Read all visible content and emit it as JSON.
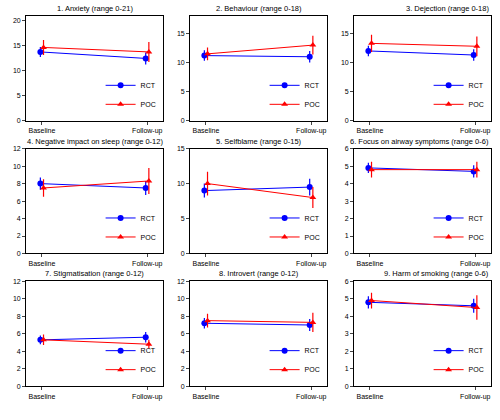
{
  "chart_data": [
    {
      "type": "line",
      "title": "1. Anxiety (range 0-21)",
      "categories": [
        "Baseline",
        "Follow-up"
      ],
      "ylim": [
        0,
        21
      ],
      "yticks": [
        0,
        5,
        10,
        15,
        20
      ],
      "legend": "lower right",
      "series": [
        {
          "name": "RCT",
          "color": "#0000ff",
          "marker": "circle",
          "values": [
            13.8,
            12.5
          ],
          "error": [
            1.0,
            1.2
          ]
        },
        {
          "name": "POC",
          "color": "#ff0000",
          "marker": "triangle",
          "values": [
            14.7,
            13.8
          ],
          "error": [
            1.5,
            2.0
          ]
        }
      ]
    },
    {
      "type": "line",
      "title": "2. Behaviour (range 0-18)",
      "categories": [
        "Baseline",
        "Follow-up"
      ],
      "ylim": [
        0,
        18
      ],
      "yticks": [
        0,
        5,
        10,
        15
      ],
      "legend": "lower right",
      "series": [
        {
          "name": "RCT",
          "color": "#0000ff",
          "marker": "circle",
          "values": [
            11.2,
            11.0
          ],
          "error": [
            0.9,
            1.0
          ]
        },
        {
          "name": "POC",
          "color": "#ff0000",
          "marker": "triangle",
          "values": [
            11.5,
            13.0
          ],
          "error": [
            1.1,
            1.6
          ]
        }
      ]
    },
    {
      "type": "line",
      "title": "3. Dejection (range 0-18)",
      "categories": [
        "Baseline",
        "Follow-up"
      ],
      "ylim": [
        0,
        18
      ],
      "yticks": [
        0,
        5,
        10,
        15
      ],
      "legend": "lower right",
      "series": [
        {
          "name": "RCT",
          "color": "#0000ff",
          "marker": "circle",
          "values": [
            12.0,
            11.3
          ],
          "error": [
            0.9,
            1.0
          ]
        },
        {
          "name": "POC",
          "color": "#ff0000",
          "marker": "triangle",
          "values": [
            13.3,
            12.8
          ],
          "error": [
            1.5,
            1.7
          ]
        }
      ]
    },
    {
      "type": "line",
      "title": "4. Negative impact on sleep (range 0-12)",
      "categories": [
        "Baseline",
        "Follow-up"
      ],
      "ylim": [
        0,
        12
      ],
      "yticks": [
        0,
        2,
        4,
        6,
        8,
        10,
        12
      ],
      "legend": "lower right",
      "series": [
        {
          "name": "RCT",
          "color": "#0000ff",
          "marker": "circle",
          "values": [
            8.0,
            7.5
          ],
          "error": [
            0.7,
            0.8
          ]
        },
        {
          "name": "POC",
          "color": "#ff0000",
          "marker": "triangle",
          "values": [
            7.5,
            8.3
          ],
          "error": [
            1.0,
            1.5
          ]
        }
      ]
    },
    {
      "type": "line",
      "title": "5. Selfblame (range 0-15)",
      "categories": [
        "Baseline",
        "Follow-up"
      ],
      "ylim": [
        0,
        15
      ],
      "yticks": [
        0,
        5,
        10,
        15
      ],
      "legend": "lower right",
      "series": [
        {
          "name": "RCT",
          "color": "#0000ff",
          "marker": "circle",
          "values": [
            9.0,
            9.5
          ],
          "error": [
            1.0,
            1.2
          ]
        },
        {
          "name": "POC",
          "color": "#ff0000",
          "marker": "triangle",
          "values": [
            10.0,
            8.0
          ],
          "error": [
            1.7,
            1.5
          ]
        }
      ]
    },
    {
      "type": "line",
      "title": "6. Focus on airway symptoms (range 0-6)",
      "categories": [
        "Baseline",
        "Follow-up"
      ],
      "ylim": [
        0,
        6
      ],
      "yticks": [
        0,
        1,
        2,
        3,
        4,
        5,
        6
      ],
      "legend": "lower right",
      "series": [
        {
          "name": "RCT",
          "color": "#0000ff",
          "marker": "circle",
          "values": [
            4.9,
            4.7
          ],
          "error": [
            0.3,
            0.35
          ]
        },
        {
          "name": "POC",
          "color": "#ff0000",
          "marker": "triangle",
          "values": [
            4.8,
            4.8
          ],
          "error": [
            0.45,
            0.45
          ]
        }
      ]
    },
    {
      "type": "line",
      "title": "7. Stigmatisation (range 0-12)",
      "categories": [
        "Baseline",
        "Follow-up"
      ],
      "ylim": [
        0,
        12
      ],
      "yticks": [
        0,
        2,
        4,
        6,
        8,
        10,
        12
      ],
      "legend": "lower right",
      "series": [
        {
          "name": "RCT",
          "color": "#0000ff",
          "marker": "circle",
          "values": [
            5.3,
            5.6
          ],
          "error": [
            0.5,
            0.6
          ]
        },
        {
          "name": "POC",
          "color": "#ff0000",
          "marker": "triangle",
          "values": [
            5.3,
            4.8
          ],
          "error": [
            0.6,
            0.5
          ]
        }
      ]
    },
    {
      "type": "line",
      "title": "8. Introvert (range 0-12)",
      "categories": [
        "Baseline",
        "Follow-up"
      ],
      "ylim": [
        0,
        12
      ],
      "yticks": [
        0,
        2,
        4,
        6,
        8,
        10,
        12
      ],
      "legend": "lower right",
      "series": [
        {
          "name": "RCT",
          "color": "#0000ff",
          "marker": "circle",
          "values": [
            7.2,
            7.0
          ],
          "error": [
            0.6,
            0.7
          ]
        },
        {
          "name": "POC",
          "color": "#ff0000",
          "marker": "triangle",
          "values": [
            7.5,
            7.3
          ],
          "error": [
            0.8,
            1.1
          ]
        }
      ]
    },
    {
      "type": "line",
      "title": "9. Harm of smoking (range 0-6)",
      "categories": [
        "Baseline",
        "Follow-up"
      ],
      "ylim": [
        0,
        6
      ],
      "yticks": [
        0,
        1,
        2,
        3,
        4,
        5,
        6
      ],
      "legend": "lower right",
      "series": [
        {
          "name": "RCT",
          "color": "#0000ff",
          "marker": "circle",
          "values": [
            4.8,
            4.6
          ],
          "error": [
            0.35,
            0.4
          ]
        },
        {
          "name": "POC",
          "color": "#ff0000",
          "marker": "triangle",
          "values": [
            4.9,
            4.5
          ],
          "error": [
            0.45,
            0.7
          ]
        }
      ]
    }
  ]
}
